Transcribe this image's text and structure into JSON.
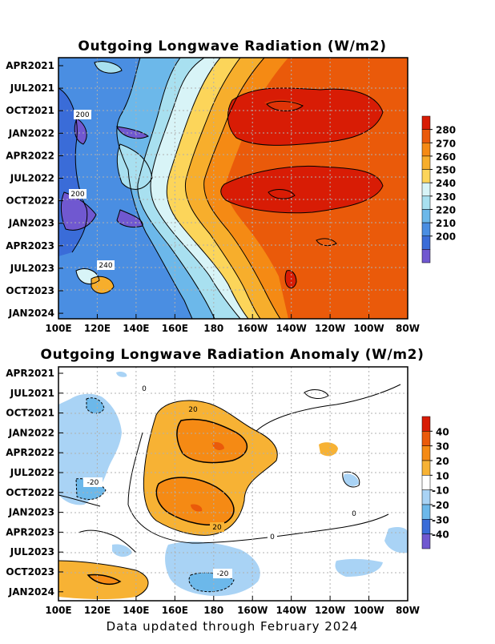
{
  "chart_data": [
    {
      "type": "heatmap",
      "title": "Outgoing Longwave Radiation (W/m2)",
      "x_ticks": [
        "100E",
        "120E",
        "140E",
        "160E",
        "180",
        "160W",
        "140W",
        "120W",
        "100W",
        "80W"
      ],
      "y_ticks": [
        "APR2021",
        "JUL2021",
        "OCT2021",
        "JAN2022",
        "APR2022",
        "JUL2022",
        "OCT2022",
        "JAN2023",
        "APR2023",
        "JUL2023",
        "OCT2023",
        "JAN2024"
      ],
      "colorbar": {
        "labels": [
          "280",
          "270",
          "260",
          "250",
          "240",
          "230",
          "220",
          "210",
          "200"
        ],
        "colors": [
          "#d81c05",
          "#ea5a0a",
          "#f58a14",
          "#f7ae2c",
          "#fcd55a",
          "#d8f4f7",
          "#a8e0f0",
          "#6cb8ea",
          "#4a8ee2",
          "#3a6cd8",
          "#7058d0"
        ]
      },
      "contour_labels": [
        "200",
        "200",
        "240"
      ],
      "grid": true
    },
    {
      "type": "heatmap",
      "title": "Outgoing Longwave Radiation Anomaly (W/m2)",
      "x_ticks": [
        "100E",
        "120E",
        "140E",
        "160E",
        "180",
        "160W",
        "140W",
        "120W",
        "100W",
        "80W"
      ],
      "y_ticks": [
        "APR2021",
        "JUL2021",
        "OCT2021",
        "JAN2022",
        "APR2022",
        "JUL2022",
        "OCT2022",
        "JAN2023",
        "APR2023",
        "JUL2023",
        "OCT2023",
        "JAN2024"
      ],
      "colorbar": {
        "labels": [
          "40",
          "30",
          "20",
          "10",
          "-10",
          "-20",
          "-30",
          "-40"
        ],
        "colors": [
          "#d81c05",
          "#ea5a0a",
          "#f58a14",
          "#f7b234",
          "#ffffff",
          "#a9d3f5",
          "#6cb8ea",
          "#3a6cd8",
          "#7058d0"
        ]
      },
      "contour_labels": [
        "0",
        "20",
        "20",
        "-20",
        "0",
        "0",
        "-20"
      ],
      "grid": true
    }
  ],
  "footer": "Data updated through February 2024"
}
